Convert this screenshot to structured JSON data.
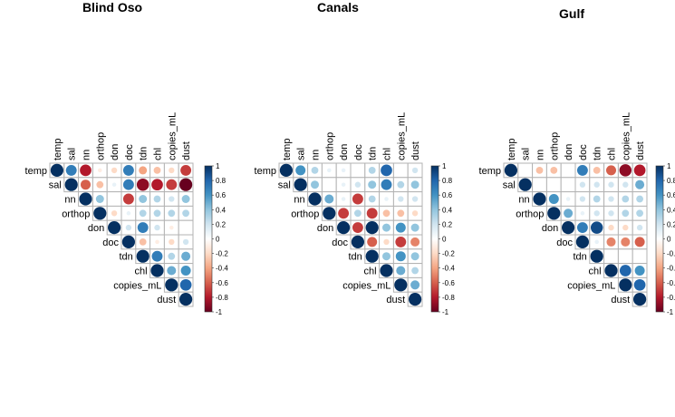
{
  "chart_data": [
    {
      "type": "heatmap",
      "subtype": "corrplot-upper-circle",
      "title": "Blind Oso",
      "variables": [
        "temp",
        "sal",
        "nn",
        "orthop",
        "don",
        "doc",
        "tdn",
        "chl",
        "copies_mL",
        "dust"
      ],
      "matrix": [
        [
          1,
          0.7,
          -0.8,
          -0.1,
          -0.2,
          0.7,
          -0.4,
          -0.3,
          -0.2,
          -0.7
        ],
        [
          null,
          1,
          -0.6,
          -0.3,
          0.1,
          0.7,
          -0.9,
          -0.8,
          -0.7,
          -1.0
        ],
        [
          null,
          null,
          1,
          0.4,
          null,
          -0.7,
          0.4,
          0.3,
          0.2,
          0.4
        ],
        [
          null,
          null,
          null,
          1,
          -0.2,
          0.1,
          0.3,
          0.3,
          0.3,
          0.3
        ],
        [
          null,
          null,
          null,
          null,
          1,
          0.2,
          0.7,
          0.2,
          -0.1,
          null
        ],
        [
          null,
          null,
          null,
          null,
          null,
          1,
          -0.3,
          -0.1,
          -0.2,
          0.2
        ],
        [
          null,
          null,
          null,
          null,
          null,
          null,
          1,
          0.7,
          0.3,
          0.5
        ],
        [
          null,
          null,
          null,
          null,
          null,
          null,
          null,
          1,
          0.5,
          0.6
        ],
        [
          null,
          null,
          null,
          null,
          null,
          null,
          null,
          null,
          1,
          0.8
        ],
        [
          null,
          null,
          null,
          null,
          null,
          null,
          null,
          null,
          null,
          1
        ]
      ]
    },
    {
      "type": "heatmap",
      "subtype": "corrplot-upper-circle",
      "title": "Canals",
      "variables": [
        "temp",
        "sal",
        "nn",
        "orthop",
        "don",
        "doc",
        "tdn",
        "chl",
        "copies_mL",
        "dust"
      ],
      "matrix": [
        [
          1,
          0.6,
          0.3,
          0.1,
          0.1,
          null,
          0.3,
          0.8,
          null,
          0.2
        ],
        [
          null,
          1,
          0.4,
          null,
          0.1,
          0.2,
          0.4,
          0.7,
          0.3,
          0.4
        ],
        [
          null,
          null,
          1,
          0.5,
          0.1,
          -0.7,
          0.3,
          0.1,
          0.2,
          0.2
        ],
        [
          null,
          null,
          null,
          1,
          -0.7,
          0.3,
          -0.7,
          -0.3,
          -0.3,
          -0.2
        ],
        [
          null,
          null,
          null,
          null,
          1,
          -0.7,
          1,
          0.4,
          0.6,
          0.4
        ],
        [
          null,
          null,
          null,
          null,
          null,
          1,
          -0.6,
          -0.2,
          -0.7,
          -0.5
        ],
        [
          null,
          null,
          null,
          null,
          null,
          null,
          1,
          0.4,
          0.6,
          0.4
        ],
        [
          null,
          null,
          null,
          null,
          null,
          null,
          null,
          1,
          0.5,
          0.3
        ],
        [
          null,
          null,
          null,
          null,
          null,
          null,
          null,
          null,
          1,
          0.5
        ],
        [
          null,
          null,
          null,
          null,
          null,
          null,
          null,
          null,
          null,
          1
        ]
      ]
    },
    {
      "type": "heatmap",
      "subtype": "corrplot-upper-circle",
      "title": "Gulf",
      "variables": [
        "temp",
        "sal",
        "nn",
        "orthop",
        "don",
        "doc",
        "tdn",
        "chl",
        "copies_mL",
        "dust"
      ],
      "matrix": [
        [
          1,
          null,
          -0.3,
          -0.3,
          null,
          0.7,
          -0.3,
          -0.6,
          -0.9,
          -0.8
        ],
        [
          null,
          1,
          null,
          null,
          null,
          0.2,
          0.2,
          0.2,
          0.2,
          0.5
        ],
        [
          null,
          null,
          1,
          0.6,
          0.1,
          0.2,
          0.3,
          0.2,
          0.3,
          0.3
        ],
        [
          null,
          null,
          null,
          1,
          0.5,
          0.1,
          0.2,
          0.2,
          0.3,
          0.3
        ],
        [
          null,
          null,
          null,
          null,
          1,
          0.7,
          0.9,
          -0.2,
          -0.2,
          0.2
        ],
        [
          null,
          null,
          null,
          null,
          null,
          1,
          0.1,
          -0.5,
          -0.5,
          -0.6
        ],
        [
          null,
          null,
          null,
          null,
          null,
          null,
          1,
          null,
          null,
          null
        ],
        [
          null,
          null,
          null,
          null,
          null,
          null,
          null,
          1,
          0.8,
          0.6
        ],
        [
          null,
          null,
          null,
          null,
          null,
          null,
          null,
          null,
          1,
          0.8
        ],
        [
          null,
          null,
          null,
          null,
          null,
          null,
          null,
          null,
          null,
          1
        ]
      ]
    }
  ],
  "colorbar": {
    "ticks": [
      "1",
      "0.8",
      "0.6",
      "0.4",
      "0.2",
      "0",
      "-0.2",
      "-0.4",
      "-0.6",
      "-0.8",
      "-1"
    ],
    "stops": [
      "#67001f",
      "#b2182b",
      "#d6604d",
      "#f4a582",
      "#fddbc7",
      "#ffffff",
      "#d1e5f0",
      "#92c5de",
      "#4393c3",
      "#2166ac",
      "#053061"
    ]
  }
}
